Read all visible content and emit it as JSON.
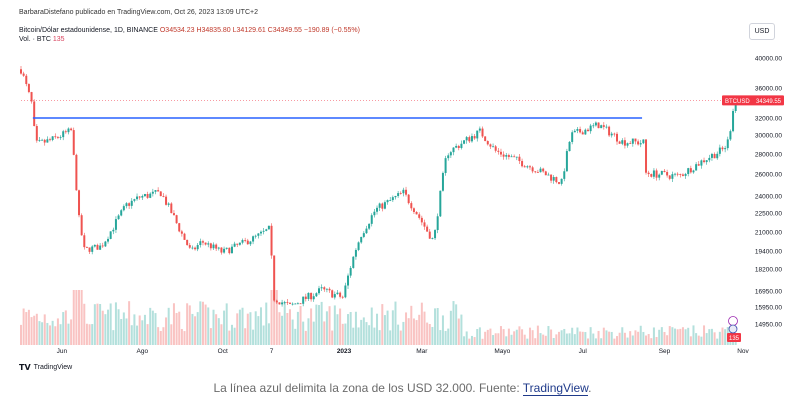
{
  "header": {
    "published": "BarbaraDistefano publicado en TradingView.com, Oct 26, 2023 13:09 UTC+2",
    "symbol_title": "Bitcoin/Dólar estadounidense, 1D, BINANCE",
    "ohlc": "O34534.23 H34835.80 L34129.61 C34349.55 −190.89 (−0.55%)",
    "vol_label": "Vol. · BTC",
    "vol_value": "135",
    "currency": "USD"
  },
  "badges": {
    "last_symbol": "BTCUSD",
    "last_price": "34349.55",
    "last_volume": "135"
  },
  "footer": {
    "logo_text": "TradingView",
    "caption_text": "La línea azul delimita la zona de los USD 32.000. Fuente: ",
    "caption_link": "TradingView",
    "caption_end": "."
  },
  "colors": {
    "up": "#26a69a",
    "down": "#ef5350",
    "line": "#2962ff",
    "price_badge": "#f23645"
  },
  "chart_data": {
    "type": "candlestick",
    "price_axis_ticks": [
      40000,
      36000,
      32000,
      30000,
      28000,
      26000,
      24000,
      22500,
      21000,
      19400,
      18200,
      16950,
      15950,
      14950
    ],
    "price_axis_labels": [
      "40000.00",
      "36000.00",
      "32000.00",
      "30000.00",
      "28000.00",
      "26000.00",
      "24000.00",
      "22500.00",
      "21000.00",
      "19400.00",
      "18200.00",
      "16950.00",
      "15950.00",
      "14950.00"
    ],
    "time_axis_labels": [
      "Jun",
      "Ago",
      "Oct",
      "7",
      "2023",
      "Mar",
      "Mayo",
      "Jul",
      "Sep",
      "Nov"
    ],
    "horizontal_line": {
      "value": 32000,
      "from": "2022-05-10",
      "to": "2023-08-15"
    },
    "last_close": 34349.55,
    "anchors": [
      [
        "2022-05-01",
        38500
      ],
      [
        "2022-05-09",
        34000
      ],
      [
        "2022-05-12",
        29000
      ],
      [
        "2022-05-25",
        29500
      ],
      [
        "2022-06-08",
        30500
      ],
      [
        "2022-06-14",
        22000
      ],
      [
        "2022-06-18",
        19500
      ],
      [
        "2022-07-01",
        19800
      ],
      [
        "2022-07-20",
        23200
      ],
      [
        "2022-07-30",
        23900
      ],
      [
        "2022-08-15",
        24300
      ],
      [
        "2022-09-07",
        19300
      ],
      [
        "2022-09-15",
        20200
      ],
      [
        "2022-10-01",
        19300
      ],
      [
        "2022-10-25",
        20500
      ],
      [
        "2022-11-05",
        21200
      ],
      [
        "2022-11-09",
        16500
      ],
      [
        "2022-11-21",
        16000
      ],
      [
        "2022-12-15",
        17000
      ],
      [
        "2022-12-31",
        16550
      ],
      [
        "2023-01-14",
        20800
      ],
      [
        "2023-01-25",
        22800
      ],
      [
        "2023-02-15",
        24300
      ],
      [
        "2023-03-10",
        20200
      ],
      [
        "2023-03-20",
        28100
      ],
      [
        "2023-04-14",
        30400
      ],
      [
        "2023-04-26",
        28300
      ],
      [
        "2023-05-15",
        27200
      ],
      [
        "2023-06-15",
        25200
      ],
      [
        "2023-06-22",
        30000
      ],
      [
        "2023-07-13",
        31200
      ],
      [
        "2023-07-31",
        29300
      ],
      [
        "2023-08-16",
        29200
      ],
      [
        "2023-08-18",
        26100
      ],
      [
        "2023-09-12",
        25800
      ],
      [
        "2023-10-02",
        27500
      ],
      [
        "2023-10-16",
        28500
      ],
      [
        "2023-10-20",
        29600
      ],
      [
        "2023-10-24",
        34500
      ],
      [
        "2023-10-26",
        34349.55
      ]
    ],
    "volume": "per-candle bars, spike near 2022-06-13 and 2022-11-09, low from 2023-04 onward"
  }
}
